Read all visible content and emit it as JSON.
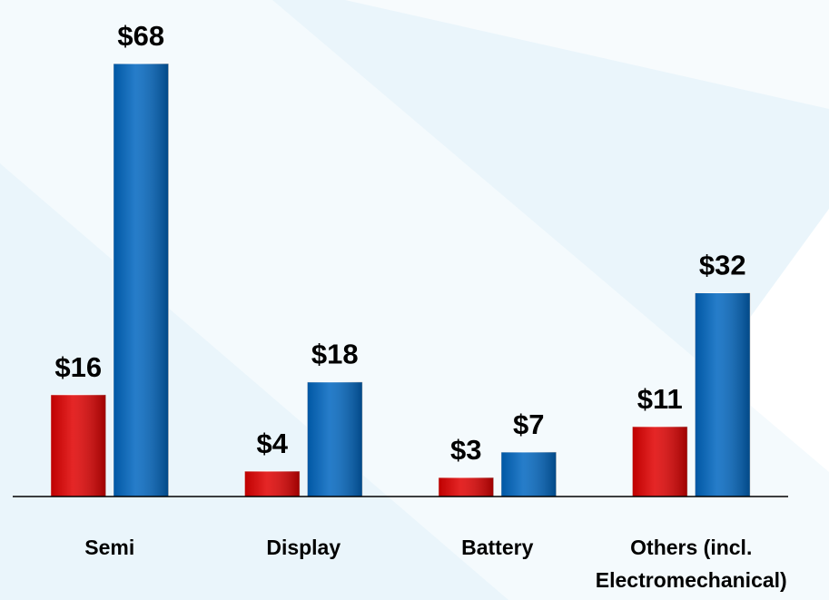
{
  "chart_data": {
    "type": "bar",
    "categories": [
      "Semi",
      "Display",
      "Battery",
      "Others (incl. Electromechanical)"
    ],
    "series": [
      {
        "color": "#e00000",
        "values": [
          16,
          4,
          3,
          11
        ],
        "value_labels": [
          "$16",
          "$4",
          "$3",
          "$11"
        ]
      },
      {
        "color": "#0066c0",
        "values": [
          68,
          18,
          7,
          32
        ],
        "value_labels": [
          "$68",
          "$18",
          "$7",
          "$32"
        ]
      }
    ],
    "ylim": [
      0,
      68
    ]
  }
}
